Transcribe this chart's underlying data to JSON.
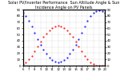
{
  "title_text": "Solar PV/Inverter Performance  Sun Altitude Angle & Sun Incidence Angle on PV Panels",
  "x_start": 6.0,
  "x_end": 20.0,
  "x_ticks": [
    6,
    7,
    8,
    9,
    10,
    11,
    12,
    13,
    14,
    15,
    16,
    17,
    18,
    19,
    20
  ],
  "y_left_min": 0,
  "y_left_max": 90,
  "y_right_min": 0,
  "y_right_max": 90,
  "blue_x": [
    6.0,
    6.5,
    7.0,
    7.5,
    8.0,
    8.5,
    9.0,
    9.5,
    10.0,
    10.5,
    11.0,
    11.5,
    12.0,
    12.5,
    13.0,
    13.5,
    14.0,
    14.5,
    15.0,
    15.5,
    16.0,
    16.5,
    17.0,
    17.5,
    18.0,
    18.5,
    19.0,
    19.5,
    20.0
  ],
  "blue_y": [
    85,
    80,
    72,
    63,
    53,
    43,
    34,
    26,
    19,
    13,
    9,
    6,
    5,
    6,
    9,
    13,
    19,
    26,
    34,
    43,
    53,
    63,
    72,
    80,
    85,
    88,
    89,
    88,
    85
  ],
  "red_x": [
    6.0,
    6.5,
    7.0,
    7.5,
    8.0,
    8.5,
    9.0,
    9.5,
    10.0,
    10.5,
    11.0,
    11.5,
    12.0,
    12.5,
    13.0,
    13.5,
    14.0,
    14.5,
    15.0,
    15.5,
    16.0,
    16.5,
    17.0,
    17.5,
    18.0,
    18.5,
    19.0,
    19.5,
    20.0
  ],
  "red_y": [
    2,
    5,
    10,
    16,
    23,
    31,
    39,
    46,
    52,
    57,
    61,
    63,
    64,
    63,
    61,
    57,
    52,
    46,
    39,
    31,
    23,
    16,
    10,
    5,
    2,
    0,
    0,
    0,
    0
  ],
  "blue_color": "#0000ff",
  "red_color": "#ff0000",
  "bg_color": "#ffffff",
  "grid_color": "#888888",
  "title_fontsize": 3.5,
  "tick_fontsize": 2.8,
  "marker_size": 1.0,
  "linewidth": 0.0,
  "y_ticks": [
    0,
    10,
    20,
    30,
    40,
    50,
    60,
    70,
    80,
    90
  ]
}
